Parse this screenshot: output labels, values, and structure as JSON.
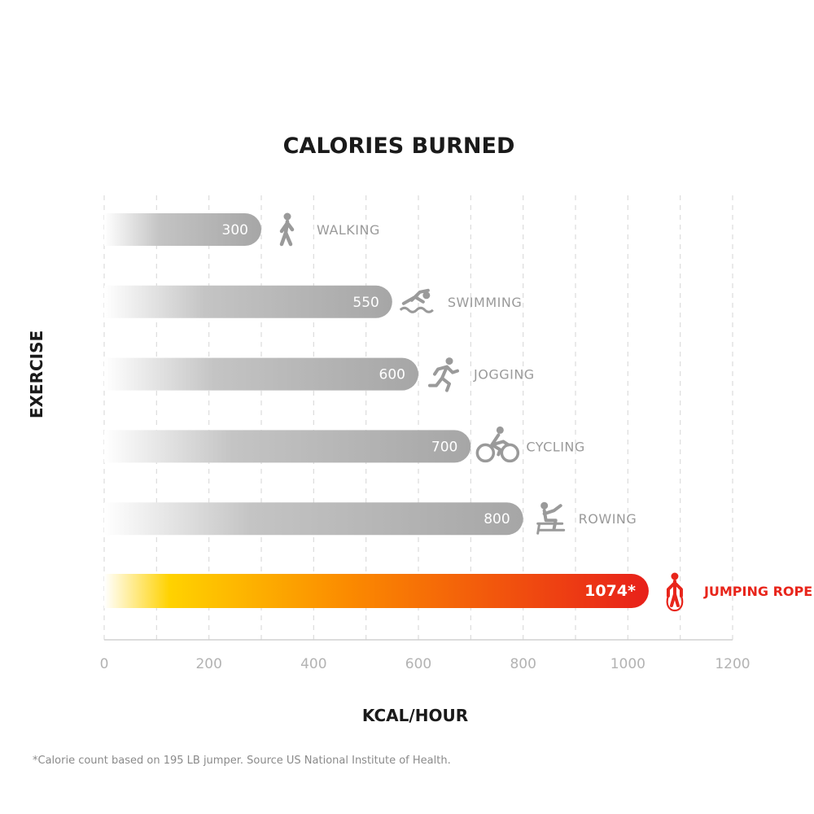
{
  "chart_data": {
    "type": "bar",
    "orientation": "horizontal",
    "title": "CALORIES BURNED",
    "xlabel": "KCAL/HOUR",
    "ylabel": "EXERCISE",
    "xlim": [
      0,
      1200
    ],
    "xticks": [
      0,
      200,
      400,
      600,
      800,
      1000,
      1200
    ],
    "grid": true,
    "categories": [
      "WALKING",
      "SWIMMING",
      "JOGGING",
      "CYCLING",
      "ROWING",
      "JUMPING ROPE"
    ],
    "values": [
      300,
      550,
      600,
      700,
      800,
      1074
    ],
    "value_labels": [
      "300",
      "550",
      "600",
      "700",
      "800",
      "1074*"
    ],
    "icons": [
      "walking-icon",
      "swimming-icon",
      "jogging-icon",
      "cycling-icon",
      "rowing-icon",
      "jumping-rope-icon"
    ],
    "highlight_index": 5,
    "colors": {
      "bar_gray": "#a8a8a8",
      "highlight_start": "#ffd400",
      "highlight_end": "#e8201a",
      "highlight_text": "#e8251b"
    }
  },
  "footnote": "*Calorie count based on 195 LB jumper. Source US National Institute of Health."
}
